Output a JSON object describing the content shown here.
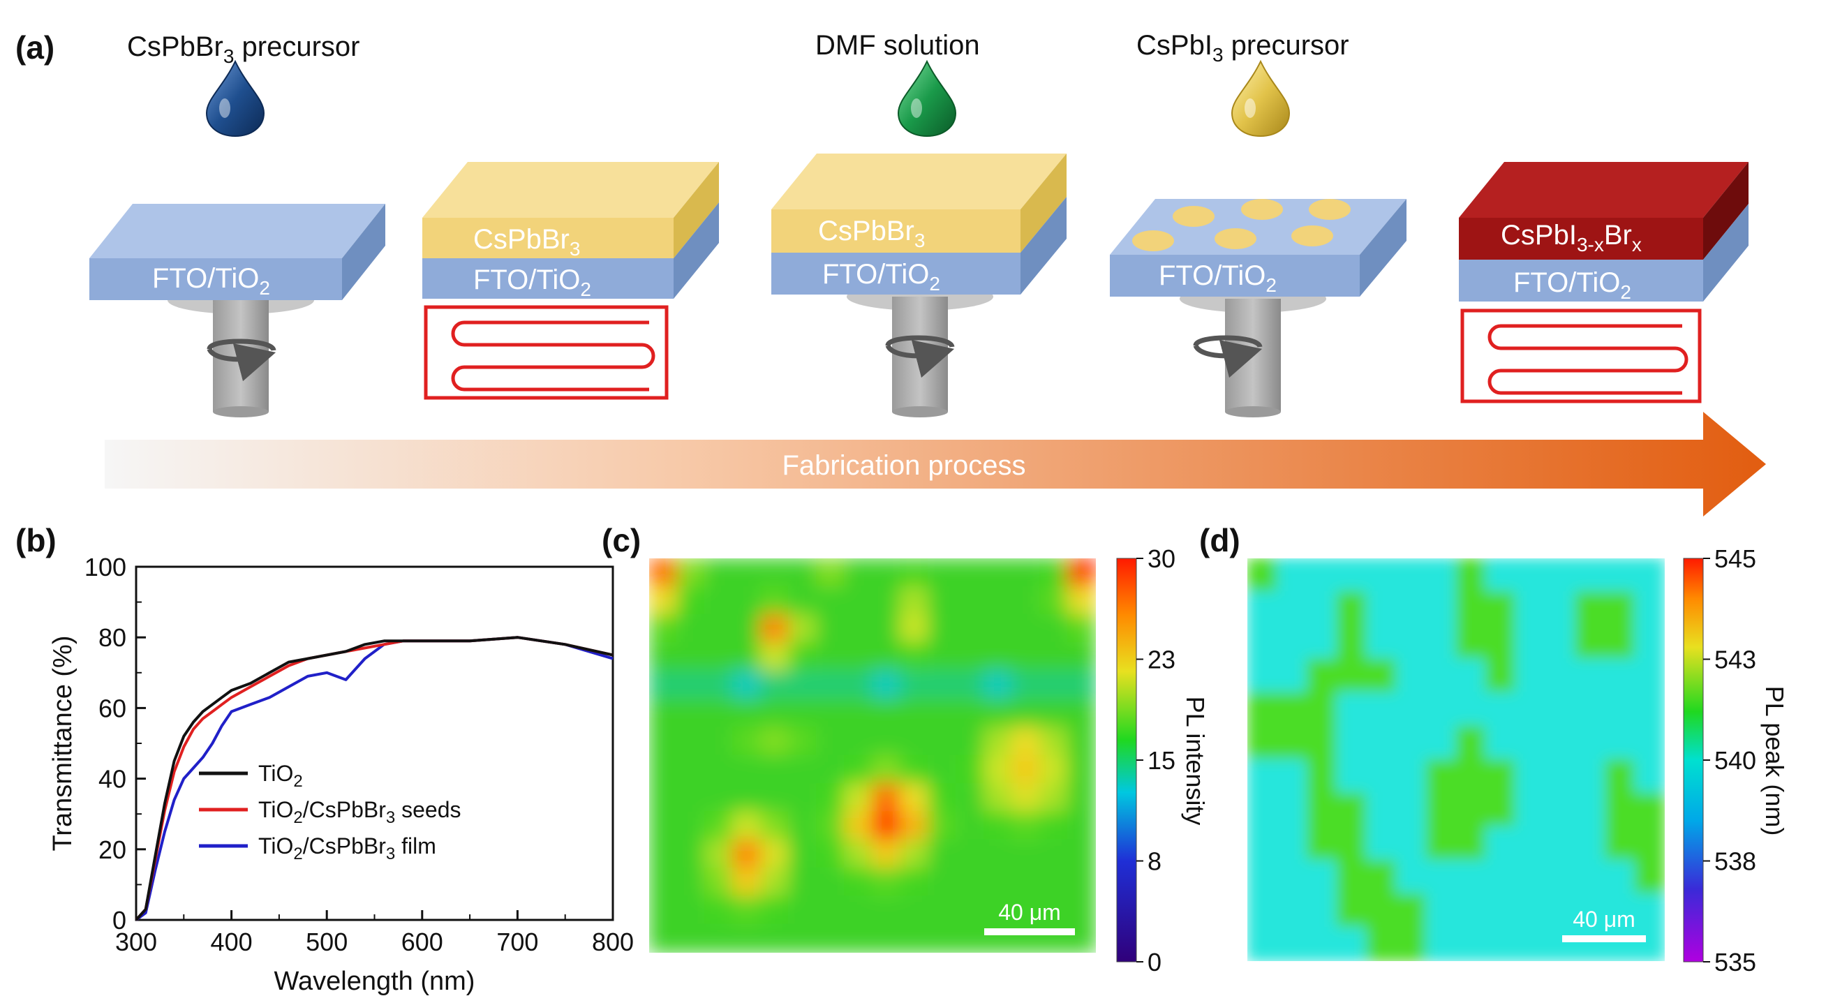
{
  "panel_labels": {
    "a": "(a)",
    "b": "(b)",
    "c": "(c)",
    "d": "(d)"
  },
  "panel_a": {
    "drop_1": "CsPbBr3 precursor",
    "drop_2": "DMF solution",
    "drop_3": "CsPbI3 precursor",
    "substrate": "FTO/TiO2",
    "film_1": "CsPbBr3",
    "film_final": "CsPbI3-xBrx",
    "arrow_label": "Fabrication process",
    "colors": {
      "drop_blue": "#1f4f8f",
      "drop_green": "#1a9a4a",
      "drop_yellow": "#e2c34a",
      "substrate": "#8fabd9",
      "film_yellow": "#f2d37a",
      "film_red": "#9e1414",
      "heater": "#e02020",
      "arrow": "#e86a1a"
    }
  },
  "chart_data": [
    {
      "type": "line",
      "panel": "(b)",
      "xlabel": "Wavelength (nm)",
      "ylabel": "Transmittance (%)",
      "xlim": [
        300,
        800
      ],
      "ylim": [
        0,
        100
      ],
      "x_ticks": [
        300,
        400,
        500,
        600,
        700,
        800
      ],
      "y_ticks": [
        0,
        20,
        40,
        60,
        80,
        100
      ],
      "x": [
        300,
        310,
        320,
        330,
        340,
        350,
        360,
        370,
        380,
        390,
        400,
        420,
        440,
        460,
        480,
        500,
        520,
        540,
        560,
        580,
        600,
        650,
        700,
        750,
        800
      ],
      "series": [
        {
          "name": "TiO2",
          "color": "#111111",
          "values": [
            0,
            3,
            18,
            33,
            45,
            52,
            56,
            59,
            61,
            63,
            65,
            67,
            70,
            73,
            74,
            75,
            76,
            78,
            79,
            79,
            79,
            79,
            80,
            78,
            75
          ]
        },
        {
          "name": "TiO2/CsPbBr3 seeds",
          "color": "#e02020",
          "values": [
            0,
            3,
            17,
            31,
            42,
            49,
            54,
            57,
            59,
            61,
            63,
            66,
            69,
            72,
            74,
            75,
            76,
            77,
            78,
            79,
            79,
            79,
            80,
            78,
            75
          ]
        },
        {
          "name": "TiO2/CsPbBr3 film",
          "color": "#2020c8",
          "values": [
            0,
            2,
            14,
            25,
            34,
            40,
            43,
            46,
            50,
            55,
            59,
            61,
            63,
            66,
            69,
            70,
            68,
            74,
            78,
            79,
            79,
            79,
            80,
            78,
            74
          ]
        }
      ],
      "legend_position": "lower-right"
    },
    {
      "type": "heatmap",
      "panel": "(c)",
      "colorbar_title": "PL intensity",
      "colorbar_ticks": [
        "0",
        "8",
        "15",
        "23",
        "30"
      ],
      "range": [
        0,
        30
      ],
      "scale_bar": "40 μm",
      "values": [
        [
          27,
          18,
          15,
          15,
          15,
          15,
          18,
          15,
          15,
          16,
          15,
          15,
          15,
          15,
          16,
          29
        ],
        [
          22,
          16,
          15,
          15,
          17,
          15,
          15,
          15,
          15,
          19,
          15,
          15,
          15,
          15,
          17,
          22
        ],
        [
          17,
          15,
          15,
          15,
          26,
          19,
          15,
          15,
          15,
          20,
          15,
          15,
          15,
          15,
          15,
          17
        ],
        [
          15,
          15,
          15,
          15,
          20,
          16,
          15,
          15,
          15,
          16,
          15,
          15,
          15,
          15,
          15,
          15
        ],
        [
          14,
          14,
          14,
          13,
          14,
          14,
          14,
          14,
          13,
          14,
          14,
          14,
          13,
          14,
          14,
          14
        ],
        [
          15,
          15,
          15,
          15,
          15,
          15,
          15,
          15,
          15,
          15,
          15,
          15,
          15,
          15,
          15,
          15
        ],
        [
          15,
          15,
          15,
          17,
          18,
          17,
          15,
          15,
          15,
          15,
          15,
          15,
          19,
          22,
          19,
          15
        ],
        [
          15,
          15,
          15,
          15,
          15,
          15,
          15,
          16,
          18,
          16,
          15,
          16,
          20,
          23,
          20,
          15
        ],
        [
          15,
          15,
          15,
          15,
          15,
          15,
          16,
          20,
          27,
          22,
          16,
          15,
          19,
          21,
          19,
          15
        ],
        [
          15,
          15,
          17,
          20,
          18,
          15,
          17,
          23,
          29,
          24,
          17,
          15,
          16,
          17,
          16,
          15
        ],
        [
          15,
          15,
          19,
          26,
          21,
          15,
          16,
          19,
          23,
          19,
          15,
          15,
          15,
          15,
          15,
          15
        ],
        [
          15,
          15,
          18,
          23,
          19,
          15,
          15,
          16,
          17,
          16,
          15,
          15,
          15,
          15,
          15,
          15
        ],
        [
          15,
          15,
          16,
          17,
          16,
          15,
          15,
          15,
          15,
          15,
          15,
          15,
          15,
          15,
          15,
          15
        ],
        [
          15,
          15,
          15,
          15,
          15,
          15,
          15,
          15,
          15,
          15,
          15,
          15,
          15,
          15,
          15,
          15
        ]
      ]
    },
    {
      "type": "heatmap",
      "panel": "(d)",
      "colorbar_title": "PL peak (nm)",
      "colorbar_ticks": [
        "535",
        "538",
        "540",
        "543",
        "545"
      ],
      "range": [
        535,
        545
      ],
      "scale_bar": "40 μm",
      "values": [
        [
          541.5,
          539.5,
          539.5,
          539.5,
          539.5,
          539.5,
          539.5,
          541.5,
          539.5,
          539.5,
          539.5,
          539.5,
          539.5,
          539.5
        ],
        [
          539.5,
          539.5,
          539.5,
          541.5,
          539.5,
          539.5,
          539.5,
          541.5,
          541.5,
          539.5,
          539.5,
          541.5,
          541.5,
          539.5
        ],
        [
          539.5,
          539.5,
          539.5,
          541.5,
          539.5,
          539.5,
          539.5,
          541.5,
          541.5,
          539.5,
          539.5,
          541.5,
          541.5,
          539.5
        ],
        [
          539.5,
          539.5,
          541.5,
          541.5,
          541.5,
          539.5,
          539.5,
          539.5,
          541.5,
          539.5,
          539.5,
          539.5,
          539.5,
          539.5
        ],
        [
          541.5,
          541.5,
          541.5,
          539.5,
          539.5,
          539.5,
          539.5,
          539.5,
          539.5,
          539.5,
          539.5,
          539.5,
          539.5,
          539.5
        ],
        [
          541.5,
          541.5,
          541.5,
          539.5,
          539.5,
          539.5,
          539.5,
          541.5,
          539.5,
          539.5,
          539.5,
          539.5,
          539.5,
          539.5
        ],
        [
          539.5,
          539.5,
          541.5,
          539.5,
          539.5,
          539.5,
          541.5,
          541.5,
          541.5,
          539.5,
          539.5,
          539.5,
          541.5,
          539.5
        ],
        [
          539.5,
          539.5,
          541.5,
          541.5,
          539.5,
          539.5,
          541.5,
          541.5,
          541.5,
          539.5,
          539.5,
          539.5,
          541.5,
          541.5
        ],
        [
          539.5,
          539.5,
          541.5,
          541.5,
          539.5,
          539.5,
          541.5,
          541.5,
          539.5,
          539.5,
          539.5,
          539.5,
          541.5,
          541.5
        ],
        [
          539.5,
          539.5,
          539.5,
          541.5,
          541.5,
          539.5,
          539.5,
          539.5,
          539.5,
          539.5,
          539.5,
          539.5,
          539.5,
          541.5
        ],
        [
          539.5,
          539.5,
          539.5,
          541.5,
          541.5,
          541.5,
          539.5,
          539.5,
          539.5,
          539.5,
          539.5,
          539.5,
          539.5,
          539.5
        ],
        [
          539.5,
          539.5,
          539.5,
          539.5,
          541.5,
          541.5,
          539.5,
          539.5,
          539.5,
          539.5,
          539.5,
          539.5,
          539.5,
          539.5
        ]
      ]
    }
  ]
}
